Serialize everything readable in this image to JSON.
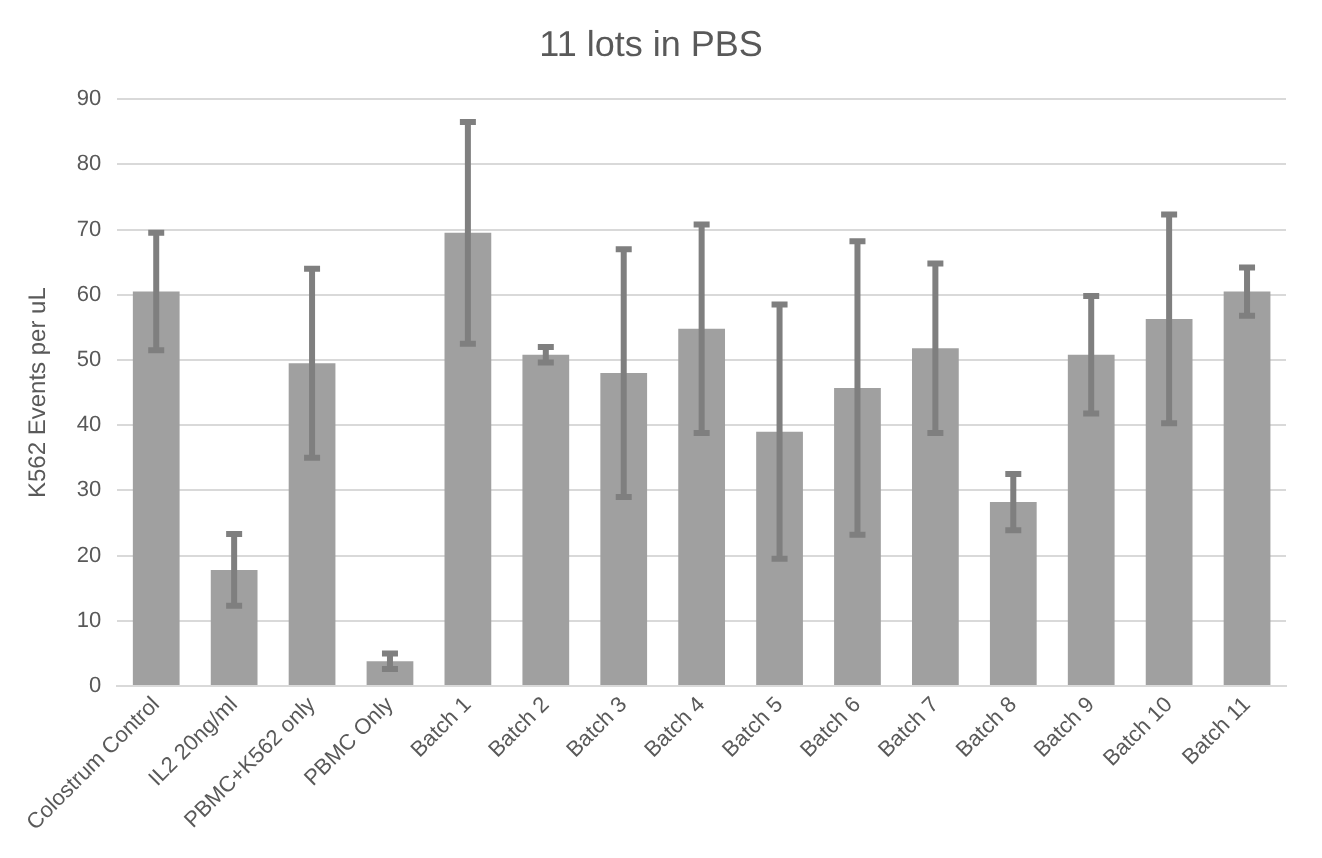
{
  "chart_data": {
    "type": "bar",
    "title": "11 lots in PBS",
    "ylabel": "K562 Events per uL",
    "categories": [
      "Colostrum Control",
      "IL2 20ng/ml",
      "PBMC+K562 only",
      "PBMC Only",
      "Batch 1",
      "Batch 2",
      "Batch 3",
      "Batch 4",
      "Batch 5",
      "Batch 6",
      "Batch 7",
      "Batch 8",
      "Batch 9",
      "Batch 10",
      "Batch 11"
    ],
    "values": [
      60.5,
      17.8,
      49.5,
      3.8,
      69.5,
      50.8,
      48,
      54.8,
      39,
      45.7,
      51.8,
      28.2,
      50.8,
      56.3,
      60.5
    ],
    "errors": [
      9,
      5.5,
      14.5,
      1.2,
      17,
      1.2,
      19,
      16,
      19.5,
      22.5,
      13,
      4.3,
      9,
      16,
      3.7
    ],
    "color": "#a0a0a0",
    "ylim": [
      0,
      90
    ],
    "yticks": [
      0,
      10,
      20,
      30,
      40,
      50,
      60,
      70,
      80,
      90
    ],
    "grid": "y",
    "legend": false
  }
}
